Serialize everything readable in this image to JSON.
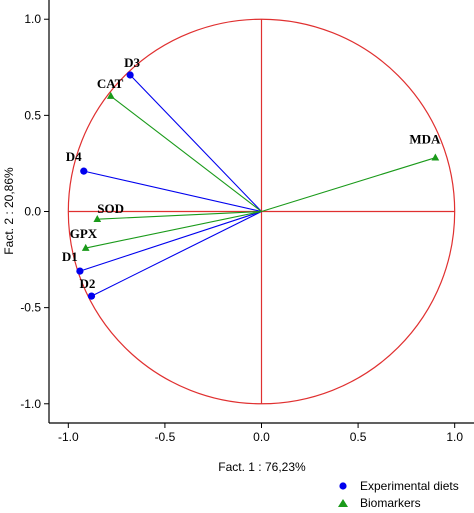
{
  "chart_data": {
    "type": "scatter",
    "subtype": "correlation-circle",
    "title": "",
    "xlabel": "Fact. 1   : 76,23%",
    "ylabel": "Fact. 2  : 20,86%",
    "xlim": [
      -1.1,
      1.1
    ],
    "ylim": [
      -1.1,
      1.1
    ],
    "xticks": [
      -1.0,
      -0.5,
      0.0,
      0.5,
      1.0
    ],
    "yticks": [
      -1.0,
      -0.5,
      0.0,
      0.5,
      1.0
    ],
    "xtick_labels": [
      "-1.0",
      "-0.5",
      "0.0",
      "0.5",
      "1.0"
    ],
    "ytick_labels": [
      "-1.0",
      "-0.5",
      "0.0",
      "0.5",
      "1.0"
    ],
    "unit_circle": true,
    "grid": false,
    "legend_position": "bottom-right",
    "colors": {
      "circle": "#e03030",
      "experimental": "#0000ee",
      "biomarkers": "#1a9a1a",
      "axis": "#000000"
    },
    "series": [
      {
        "name": "Experimental diets",
        "marker": "circle",
        "points": [
          {
            "label": "D1",
            "x": -0.94,
            "y": -0.31
          },
          {
            "label": "D2",
            "x": -0.88,
            "y": -0.44
          },
          {
            "label": "D3",
            "x": -0.68,
            "y": 0.71
          },
          {
            "label": "D4",
            "x": -0.92,
            "y": 0.21
          }
        ]
      },
      {
        "name": "Biomarkers",
        "marker": "triangle",
        "points": [
          {
            "label": "CAT",
            "x": -0.78,
            "y": 0.6
          },
          {
            "label": "MDA",
            "x": 0.9,
            "y": 0.28
          },
          {
            "label": "SOD",
            "x": -0.85,
            "y": -0.04
          },
          {
            "label": "GPX",
            "x": -0.91,
            "y": -0.19
          }
        ]
      }
    ]
  }
}
